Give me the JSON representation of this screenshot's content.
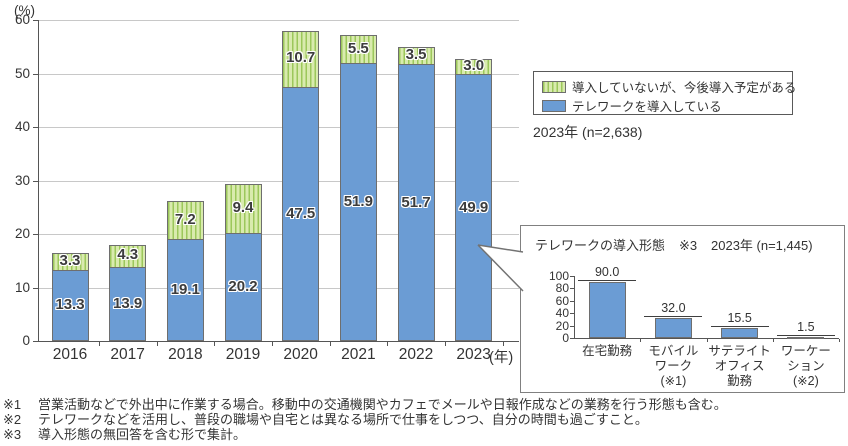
{
  "chart_data": [
    {
      "id": "main",
      "type": "bar",
      "subtype": "stacked",
      "title": "",
      "ylabel": "(%)",
      "xlabel_suffix": "(年)",
      "categories": [
        "2016",
        "2017",
        "2018",
        "2019",
        "2020",
        "2021",
        "2022",
        "2023"
      ],
      "series": [
        {
          "name": "テレワークを導入している",
          "color": "#6b9cd4",
          "values": [
            13.3,
            13.9,
            19.1,
            20.2,
            47.5,
            51.9,
            51.7,
            49.9
          ]
        },
        {
          "name": "導入していないが、今後導入予定がある",
          "color": "#d9ebae",
          "stripe_color": "#9cc75b",
          "values": [
            3.3,
            4.3,
            7.2,
            9.4,
            10.7,
            5.5,
            3.5,
            3.0
          ]
        }
      ],
      "ylim": [
        0,
        60
      ],
      "yticks": [
        0,
        10,
        20,
        30,
        40,
        50,
        60
      ],
      "grid": "horizontal",
      "legend_position": "right",
      "annotation": "2023年 (n=2,638)"
    },
    {
      "id": "inset",
      "type": "bar",
      "title": "テレワークの導入形態",
      "title_note": "※3",
      "annotation": "2023年 (n=1,445)",
      "categories": [
        "在宅勤務",
        "モバイル\nワーク\n(※1)",
        "サテライト\nオフィス\n勤務",
        "ワーケー\nション\n(※2)"
      ],
      "values": [
        90.0,
        32.0,
        15.5,
        1.5
      ],
      "bar_color": "#6b9cd4",
      "ylim": [
        0,
        100
      ],
      "yticks": [
        0,
        20,
        40,
        60,
        80,
        100
      ],
      "grid": "off",
      "legend_position": "none"
    }
  ],
  "legend": {
    "items": [
      {
        "label": "導入していないが、今後導入予定がある",
        "swatch": "green-striped"
      },
      {
        "label": "テレワークを導入している",
        "swatch": "blue"
      }
    ]
  },
  "footnotes": [
    {
      "marker": "※1",
      "text": "営業活動などで外出中に作業する場合。移動中の交通機関やカフェでメールや日報作成などの業務を行う形態も含む。"
    },
    {
      "marker": "※2",
      "text": "テレワークなどを活用し、普段の職場や自宅とは異なる場所で仕事をしつつ、自分の時間も過ごすこと。"
    },
    {
      "marker": "※3",
      "text": "導入形態の無回答を含む形で集計。"
    }
  ],
  "colors": {
    "bar_blue": "#6b9cd4",
    "bar_green_bg": "#d9ebae",
    "bar_green_stripe": "#9cc75b",
    "bar_border": "#6e6e6e",
    "grid": "#c8c8c8",
    "axis": "#555555",
    "label_text": "#3c3c3c",
    "box_border": "#808080"
  }
}
